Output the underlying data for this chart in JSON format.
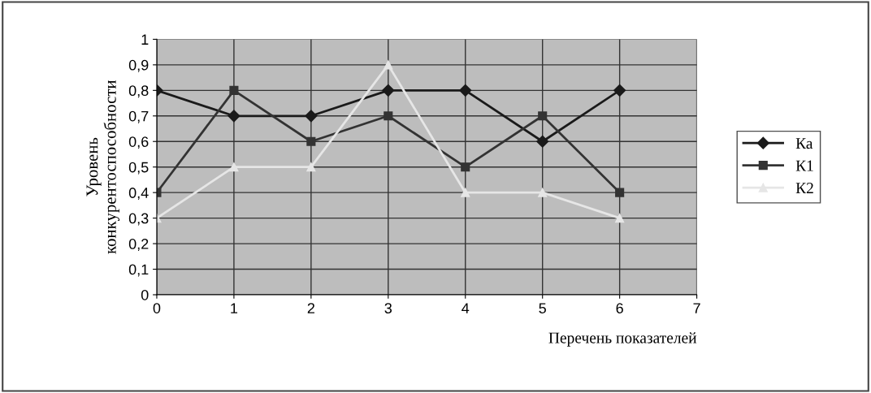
{
  "chart_data": {
    "type": "line",
    "xlabel": "Перечень показателей",
    "ylabel": "Уровень\nконкурентоспособности",
    "x": [
      0,
      1,
      2,
      3,
      4,
      5,
      6
    ],
    "series": [
      {
        "name": "Ка",
        "color": "#1a1a1a",
        "marker": "diamond",
        "values": [
          0.8,
          0.7,
          0.7,
          0.8,
          0.8,
          0.6,
          0.8
        ]
      },
      {
        "name": "К1",
        "color": "#333333",
        "marker": "square",
        "values": [
          0.4,
          0.8,
          0.6,
          0.7,
          0.5,
          0.7,
          0.4
        ]
      },
      {
        "name": "К2",
        "color": "#e6e6e6",
        "marker": "triangle",
        "values": [
          0.3,
          0.5,
          0.5,
          0.9,
          0.4,
          0.4,
          0.3
        ]
      }
    ],
    "xlim": [
      0,
      7
    ],
    "xticks": [
      0,
      1,
      2,
      3,
      4,
      5,
      6,
      7
    ],
    "ylim": [
      0,
      1
    ],
    "yticks": [
      0,
      {
        "value": 0.1,
        "label": "0,1"
      },
      {
        "value": 0.2,
        "label": "0,2"
      },
      {
        "value": 0.3,
        "label": "0,3"
      },
      {
        "value": 0.4,
        "label": "0,4"
      },
      {
        "value": 0.5,
        "label": "0,5"
      },
      {
        "value": 0.6,
        "label": "0,6"
      },
      {
        "value": 0.7,
        "label": "0,7"
      },
      {
        "value": 0.8,
        "label": "0,8"
      },
      {
        "value": 0.9,
        "label": "0,9"
      },
      1
    ],
    "grid": true,
    "legend": "right",
    "line_style": "solid"
  }
}
